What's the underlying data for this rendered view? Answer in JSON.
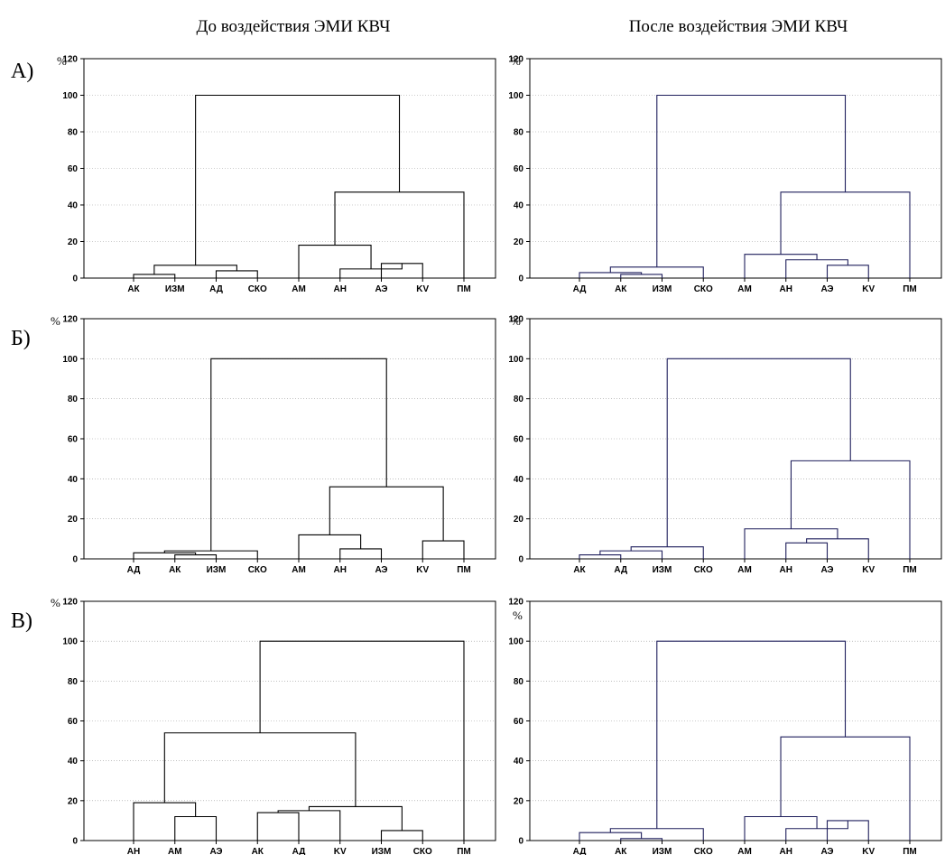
{
  "titles": {
    "before": "До воздействия ЭМИ КВЧ",
    "after": "После воздействия ЭМИ КВЧ"
  },
  "row_labels": [
    "А)",
    "Б)",
    "В)"
  ],
  "colors": {
    "before_tree": "#000000",
    "after_tree": "#1f1f5c"
  },
  "chart_data": [
    {
      "type": "dendrogram",
      "panel": "А-before",
      "ylabel": "%",
      "ylim": [
        0,
        120
      ],
      "yticks": [
        0,
        20,
        40,
        60,
        80,
        100,
        120
      ],
      "leaves": [
        "АК",
        "ИЗМ",
        "АД",
        "СКО",
        "АМ",
        "АН",
        "АЭ",
        "KV",
        "ПМ"
      ],
      "merges": [
        {
          "a": "АК",
          "b": "ИЗМ",
          "h": 2
        },
        {
          "a": "АД",
          "b": "СКО",
          "h": 4
        },
        {
          "a": 0,
          "b": 1,
          "h": 7
        },
        {
          "a": "АЭ",
          "b": "KV",
          "h": 8
        },
        {
          "a": "АН",
          "b": 3,
          "h": 5
        },
        {
          "a": "АМ",
          "b": 4,
          "h": 18
        },
        {
          "a": 5,
          "b": "ПМ",
          "h": 47
        },
        {
          "a": 2,
          "b": 6,
          "h": 100
        }
      ]
    },
    {
      "type": "dendrogram",
      "panel": "А-after",
      "ylabel": "%",
      "ylim": [
        0,
        120
      ],
      "yticks": [
        0,
        20,
        40,
        60,
        80,
        100,
        120
      ],
      "leaves": [
        "АД",
        "АК",
        "ИЗМ",
        "СКО",
        "АМ",
        "АН",
        "АЭ",
        "KV",
        "ПМ"
      ],
      "merges": [
        {
          "a": "АК",
          "b": "ИЗМ",
          "h": 2
        },
        {
          "a": "АД",
          "b": 0,
          "h": 3
        },
        {
          "a": 1,
          "b": "СКО",
          "h": 6
        },
        {
          "a": "АЭ",
          "b": "KV",
          "h": 7
        },
        {
          "a": "АН",
          "b": 3,
          "h": 10
        },
        {
          "a": "АМ",
          "b": 4,
          "h": 13
        },
        {
          "a": 5,
          "b": "ПМ",
          "h": 47
        },
        {
          "a": 2,
          "b": 6,
          "h": 100
        }
      ]
    },
    {
      "type": "dendrogram",
      "panel": "Б-before",
      "ylabel": "%",
      "ylim": [
        0,
        120
      ],
      "yticks": [
        0,
        20,
        40,
        60,
        80,
        100,
        120
      ],
      "leaves": [
        "АД",
        "АК",
        "ИЗМ",
        "СКО",
        "АМ",
        "АН",
        "АЭ",
        "KV",
        "ПМ"
      ],
      "merges": [
        {
          "a": "АК",
          "b": "ИЗМ",
          "h": 2
        },
        {
          "a": "АД",
          "b": 0,
          "h": 3
        },
        {
          "a": 1,
          "b": "СКО",
          "h": 4
        },
        {
          "a": "АН",
          "b": "АЭ",
          "h": 5
        },
        {
          "a": "АМ",
          "b": 3,
          "h": 12
        },
        {
          "a": "KV",
          "b": "ПМ",
          "h": 9
        },
        {
          "a": 4,
          "b": 5,
          "h": 36
        },
        {
          "a": 2,
          "b": 6,
          "h": 100
        }
      ]
    },
    {
      "type": "dendrogram",
      "panel": "Б-after",
      "ylabel": "%",
      "ylim": [
        0,
        120
      ],
      "yticks": [
        0,
        20,
        40,
        60,
        80,
        100,
        120
      ],
      "leaves": [
        "АК",
        "АД",
        "ИЗМ",
        "СКО",
        "АМ",
        "АН",
        "АЭ",
        "KV",
        "ПМ"
      ],
      "merges": [
        {
          "a": "АК",
          "b": "АД",
          "h": 2
        },
        {
          "a": 0,
          "b": "ИЗМ",
          "h": 4
        },
        {
          "a": 1,
          "b": "СКО",
          "h": 6
        },
        {
          "a": "АН",
          "b": "АЭ",
          "h": 8
        },
        {
          "a": 3,
          "b": "KV",
          "h": 10
        },
        {
          "a": "АМ",
          "b": 4,
          "h": 15
        },
        {
          "a": 5,
          "b": "ПМ",
          "h": 49
        },
        {
          "a": 2,
          "b": 6,
          "h": 100
        }
      ]
    },
    {
      "type": "dendrogram",
      "panel": "В-before",
      "ylabel": "%",
      "ylim": [
        0,
        120
      ],
      "yticks": [
        0,
        20,
        40,
        60,
        80,
        100,
        120
      ],
      "leaves": [
        "АН",
        "АМ",
        "АЭ",
        "АК",
        "АД",
        "KV",
        "ИЗМ",
        "СКО",
        "ПМ"
      ],
      "merges": [
        {
          "a": "АМ",
          "b": "АЭ",
          "h": 12
        },
        {
          "a": "АН",
          "b": 0,
          "h": 19
        },
        {
          "a": "АК",
          "b": "АД",
          "h": 14
        },
        {
          "a": "ИЗМ",
          "b": "СКО",
          "h": 5
        },
        {
          "a": 2,
          "b": "KV",
          "h": 15
        },
        {
          "a": 4,
          "b": 3,
          "h": 17
        },
        {
          "a": 1,
          "b": 5,
          "h": 54
        },
        {
          "a": 6,
          "b": "ПМ",
          "h": 100
        }
      ]
    },
    {
      "type": "dendrogram",
      "panel": "В-after",
      "ylabel": "%",
      "ylim": [
        0,
        120
      ],
      "yticks": [
        0,
        20,
        40,
        60,
        80,
        100,
        120
      ],
      "leaves": [
        "АД",
        "АК",
        "ИЗМ",
        "СКО",
        "АМ",
        "АН",
        "АЭ",
        "KV",
        "ПМ"
      ],
      "merges": [
        {
          "a": "АК",
          "b": "ИЗМ",
          "h": 1
        },
        {
          "a": "АД",
          "b": 0,
          "h": 4
        },
        {
          "a": 1,
          "b": "СКО",
          "h": 6
        },
        {
          "a": "АЭ",
          "b": "KV",
          "h": 10
        },
        {
          "a": "АН",
          "b": 3,
          "h": 6
        },
        {
          "a": "АМ",
          "b": 4,
          "h": 12
        },
        {
          "a": 5,
          "b": "ПМ",
          "h": 52
        },
        {
          "a": 2,
          "b": 6,
          "h": 100
        }
      ]
    }
  ]
}
